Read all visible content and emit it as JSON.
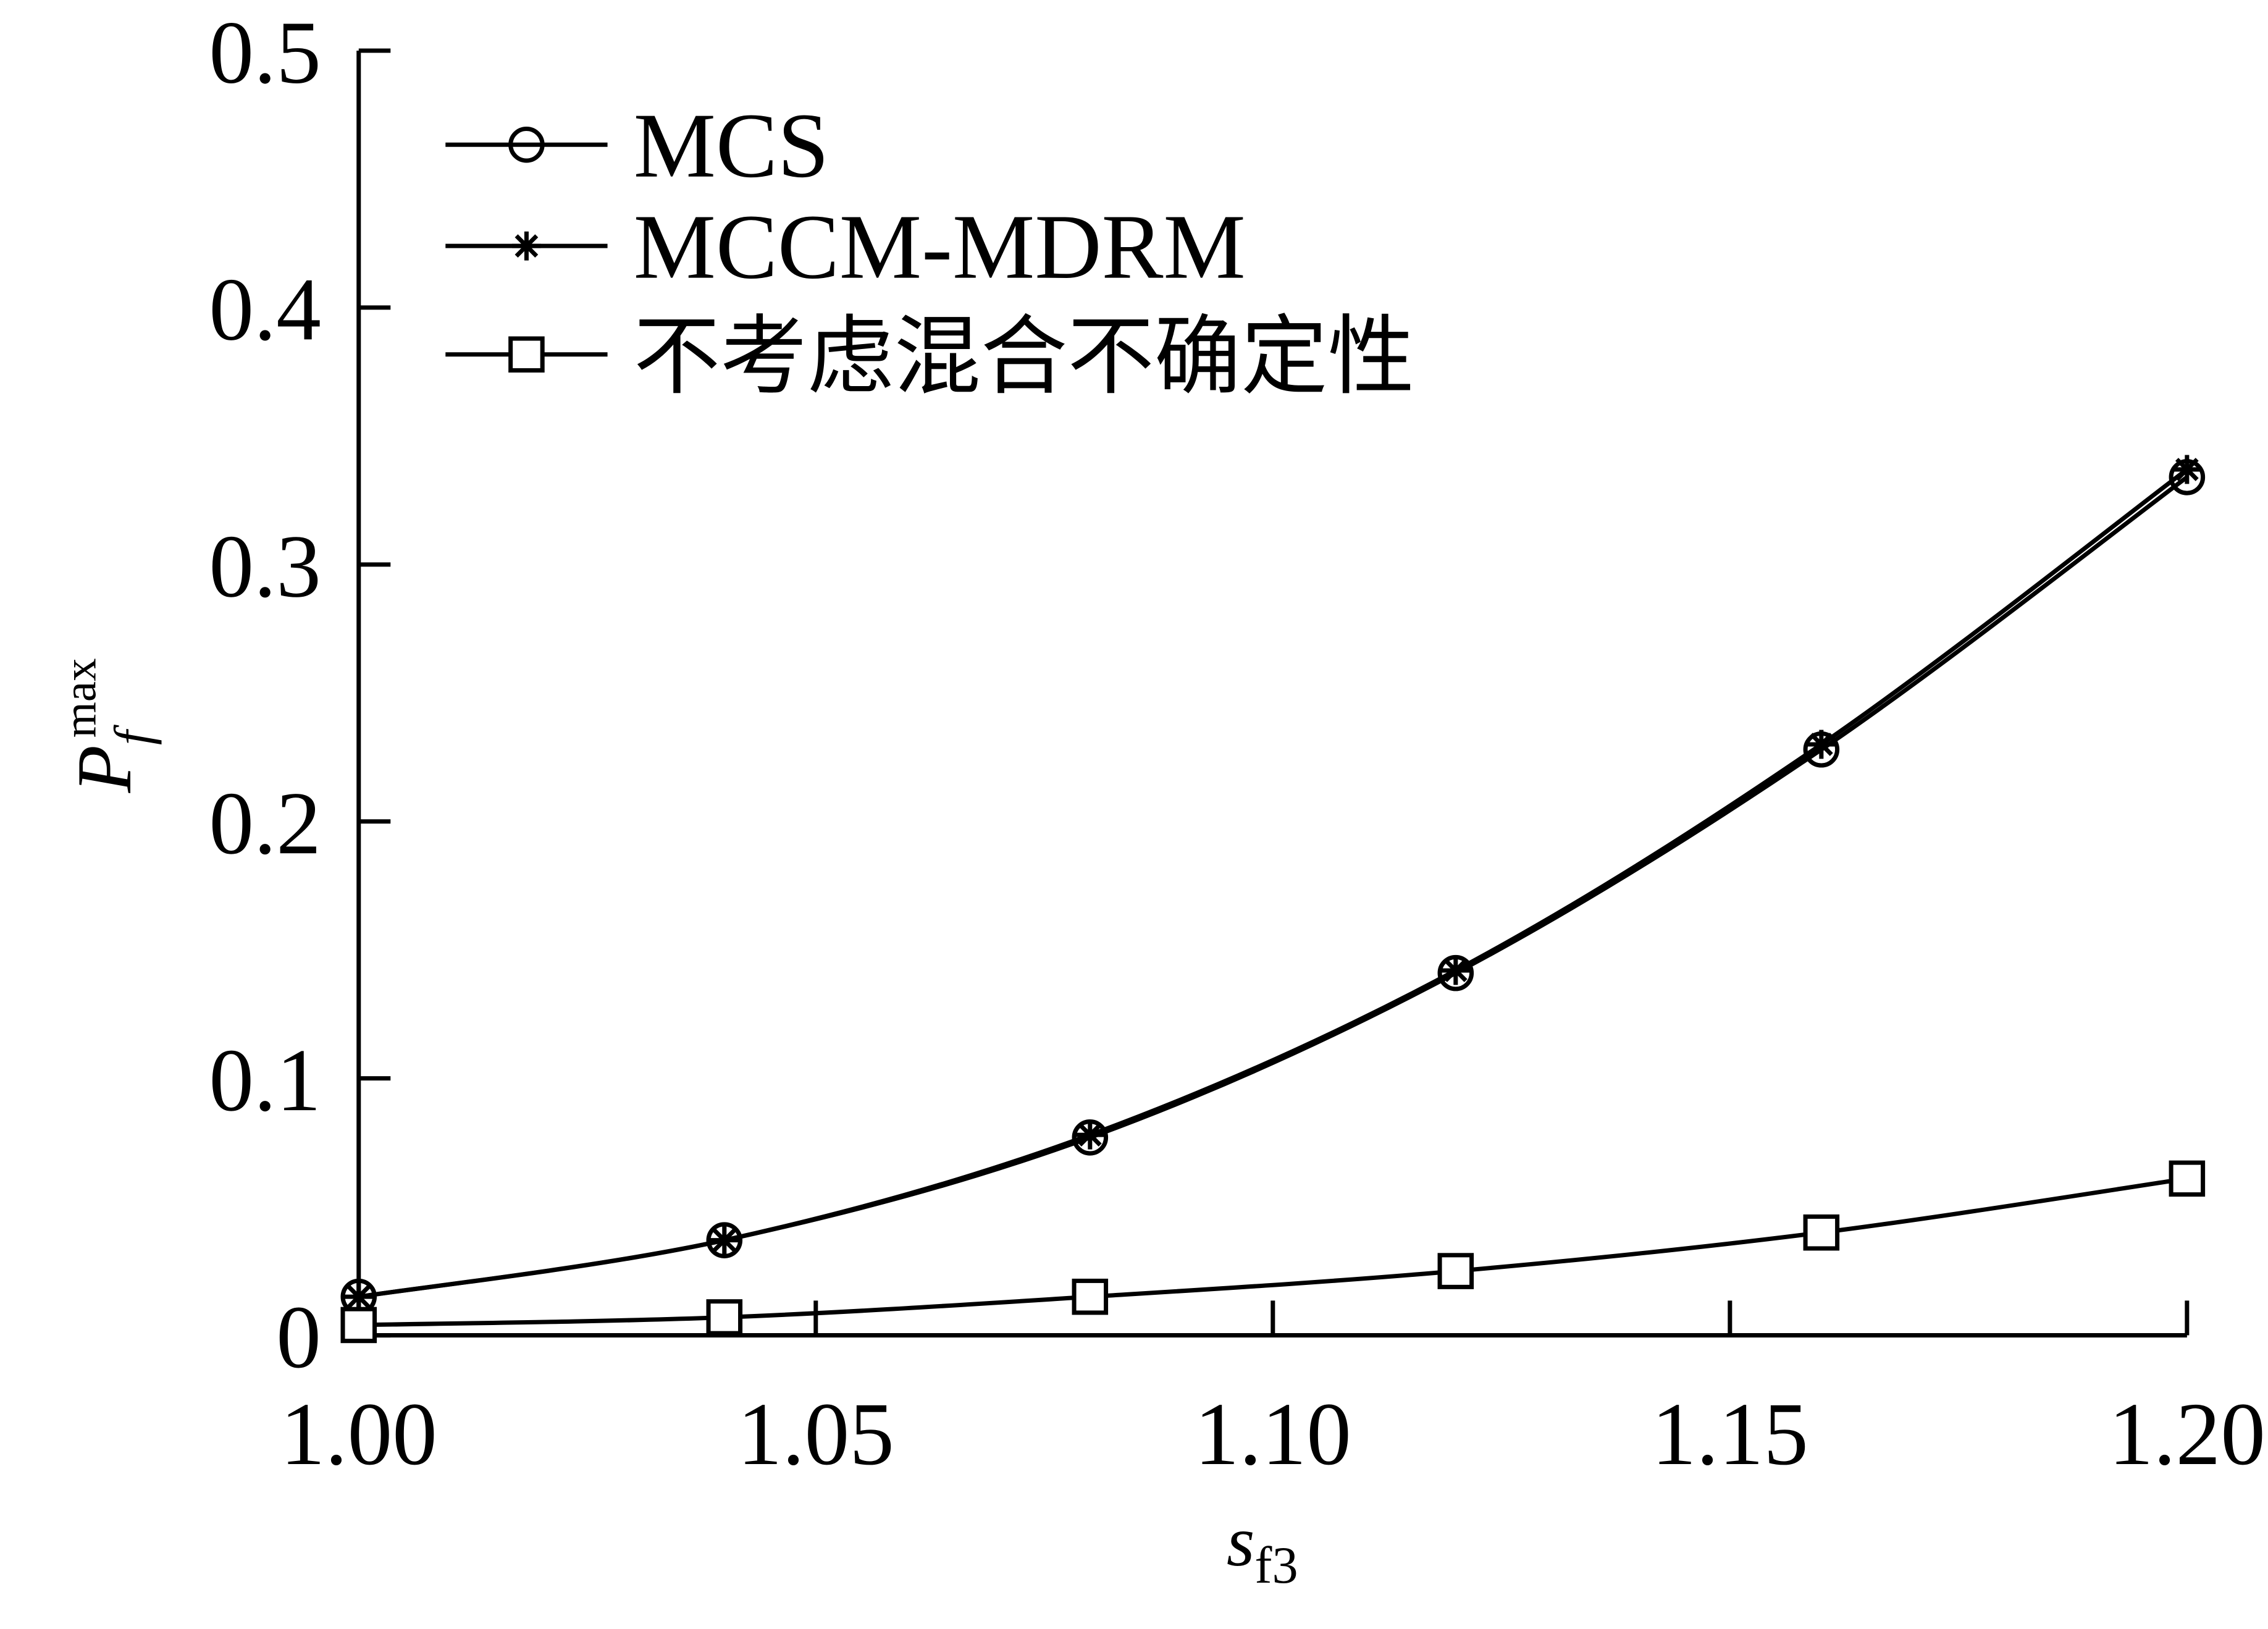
{
  "chart_data": {
    "type": "line",
    "title": "",
    "xlabel_main": "s",
    "xlabel_sub": "f3",
    "ylabel_main": "P",
    "ylabel_sub": "f",
    "ylabel_sup": "max",
    "xlim": [
      1.0,
      1.2
    ],
    "ylim": [
      0,
      0.5
    ],
    "x_ticks": [
      "1.00",
      "1.05",
      "1.10",
      "1.15",
      "1.20"
    ],
    "x_tick_values": [
      1.0,
      1.05,
      1.1,
      1.15,
      1.2
    ],
    "y_ticks": [
      "0",
      "0.1",
      "0.2",
      "0.3",
      "0.4",
      "0.5"
    ],
    "y_tick_values": [
      0,
      0.1,
      0.2,
      0.3,
      0.4,
      0.5
    ],
    "legend_position": "top-left",
    "x": [
      1.0,
      1.04,
      1.08,
      1.12,
      1.16,
      1.2
    ],
    "series": [
      {
        "name": "MCS",
        "marker": "circle",
        "values": [
          0.015,
          0.037,
          0.077,
          0.141,
          0.228,
          0.334
        ]
      },
      {
        "name": "MCCM-MDRM",
        "marker": "star",
        "values": [
          0.015,
          0.037,
          0.078,
          0.142,
          0.23,
          0.337
        ]
      },
      {
        "name": "不考虑混合不确定性",
        "marker": "square",
        "values": [
          0.004,
          0.007,
          0.015,
          0.025,
          0.04,
          0.061
        ]
      }
    ],
    "grid": false
  }
}
